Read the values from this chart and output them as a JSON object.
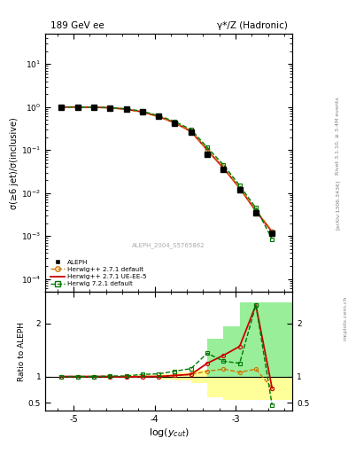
{
  "title_left": "189 GeV ee",
  "title_right": "γ*/Z (Hadronic)",
  "ylabel_main": "σ(≥6 jet)/σ(inclusive)",
  "ylabel_ratio": "Ratio to ALEPH",
  "xlabel": "log(y_{cut})",
  "right_label_top": "Rivet 3.1.10, ≥ 3.4M events",
  "right_label_bot": "[arXiv:1306.3436]",
  "watermark": "ALEPH_2004_S5765862",
  "mcplots_label": "mcplots.cern.ch",
  "xlim": [
    -5.35,
    -2.3
  ],
  "ylim_main": [
    5e-05,
    50
  ],
  "ylim_ratio": [
    0.35,
    2.6
  ],
  "data_x": [
    -5.15,
    -4.95,
    -4.75,
    -4.55,
    -4.35,
    -4.15,
    -3.95,
    -3.75,
    -3.55,
    -3.35,
    -3.15,
    -2.95,
    -2.75,
    -2.55
  ],
  "data_y": [
    1.0,
    1.0,
    0.99,
    0.96,
    0.9,
    0.77,
    0.6,
    0.42,
    0.26,
    0.08,
    0.035,
    0.012,
    0.0035,
    0.00115
  ],
  "hw271_x": [
    -5.15,
    -4.95,
    -4.75,
    -4.55,
    -4.35,
    -4.15,
    -3.95,
    -3.75,
    -3.55,
    -3.35,
    -3.15,
    -2.95,
    -2.75,
    -2.55
  ],
  "hw271_y": [
    1.0,
    1.0,
    0.99,
    0.96,
    0.89,
    0.77,
    0.6,
    0.43,
    0.27,
    0.1,
    0.04,
    0.013,
    0.004,
    0.0013
  ],
  "hw271ue_x": [
    -5.15,
    -4.95,
    -4.75,
    -4.55,
    -4.35,
    -4.15,
    -3.95,
    -3.75,
    -3.55,
    -3.35,
    -3.15,
    -2.95,
    -2.75,
    -2.55
  ],
  "hw271ue_y": [
    1.0,
    1.0,
    0.99,
    0.96,
    0.89,
    0.77,
    0.6,
    0.43,
    0.27,
    0.1,
    0.038,
    0.013,
    0.0038,
    0.00125
  ],
  "hw721_x": [
    -5.15,
    -4.95,
    -4.75,
    -4.55,
    -4.35,
    -4.15,
    -3.95,
    -3.75,
    -3.55,
    -3.35,
    -3.15,
    -2.95,
    -2.75,
    -2.55
  ],
  "hw721_y": [
    1.0,
    1.0,
    0.99,
    0.97,
    0.91,
    0.8,
    0.63,
    0.46,
    0.3,
    0.115,
    0.045,
    0.015,
    0.0045,
    0.00085
  ],
  "ratio_hw271_x": [
    -5.15,
    -4.95,
    -4.75,
    -4.55,
    -4.35,
    -4.15,
    -3.95,
    -3.75,
    -3.55,
    -3.35,
    -3.15,
    -2.95,
    -2.75,
    -2.55
  ],
  "ratio_hw271_y": [
    1.0,
    1.0,
    1.0,
    1.0,
    0.99,
    1.0,
    1.0,
    1.02,
    1.04,
    1.1,
    1.14,
    1.08,
    1.14,
    0.78
  ],
  "ratio_hw271ue_x": [
    -5.15,
    -4.95,
    -4.75,
    -4.55,
    -4.35,
    -4.15,
    -3.95,
    -3.75,
    -3.55,
    -3.35,
    -3.15,
    -2.95,
    -2.75,
    -2.55
  ],
  "ratio_hw271ue_y": [
    1.0,
    1.0,
    1.0,
    1.0,
    0.99,
    1.0,
    1.0,
    1.02,
    1.04,
    1.25,
    1.4,
    1.57,
    2.35,
    0.78
  ],
  "ratio_hw721_x": [
    -5.15,
    -4.95,
    -4.75,
    -4.55,
    -4.35,
    -4.15,
    -3.95,
    -3.75,
    -3.55,
    -3.35,
    -3.15,
    -2.95,
    -2.75,
    -2.55
  ],
  "ratio_hw721_y": [
    1.0,
    1.0,
    1.0,
    1.01,
    1.01,
    1.04,
    1.05,
    1.1,
    1.15,
    1.44,
    1.29,
    1.25,
    2.35,
    0.46
  ],
  "band_yellow_edges": [
    -5.35,
    -4.95,
    -4.75,
    -4.55,
    -4.35,
    -4.15,
    -3.95,
    -3.75,
    -3.55,
    -3.35,
    -3.15,
    -2.95,
    -2.75,
    -2.55,
    -2.3
  ],
  "band_yellow_lo": [
    1.0,
    1.0,
    1.0,
    1.0,
    0.98,
    0.97,
    0.95,
    0.93,
    0.88,
    0.72,
    0.6,
    0.55,
    0.55,
    0.55
  ],
  "band_yellow_hi": [
    1.0,
    1.0,
    1.0,
    1.0,
    1.02,
    1.03,
    1.05,
    1.07,
    1.12,
    1.28,
    1.4,
    1.45,
    1.45,
    1.45
  ],
  "band_green_edges": [
    -3.35,
    -3.15,
    -2.95,
    -2.75,
    -2.55,
    -2.3
  ],
  "band_green_lo": [
    1.0,
    1.0,
    1.0,
    1.0,
    1.0
  ],
  "band_green_hi": [
    1.72,
    1.95,
    2.4,
    2.4,
    2.4
  ],
  "band_yellow2_edges": [
    -3.35,
    -3.15,
    -2.95,
    -2.75,
    -2.55,
    -2.3
  ],
  "band_yellow2_lo": [
    0.6,
    0.55,
    0.55,
    0.55,
    0.55
  ],
  "band_yellow2_hi": [
    1.72,
    1.95,
    2.4,
    2.4,
    2.4
  ],
  "color_data": "#000000",
  "color_hw271": "#cc7700",
  "color_hw271ue": "#cc0000",
  "color_hw721": "#007700",
  "color_band_yellow": "#ffff99",
  "color_band_green": "#99ee99",
  "legend_labels": [
    "ALEPH",
    "Herwig++ 2.7.1 default",
    "Herwig++ 2.7.1 UE-EE-5",
    "Herwig 7.2.1 default"
  ]
}
